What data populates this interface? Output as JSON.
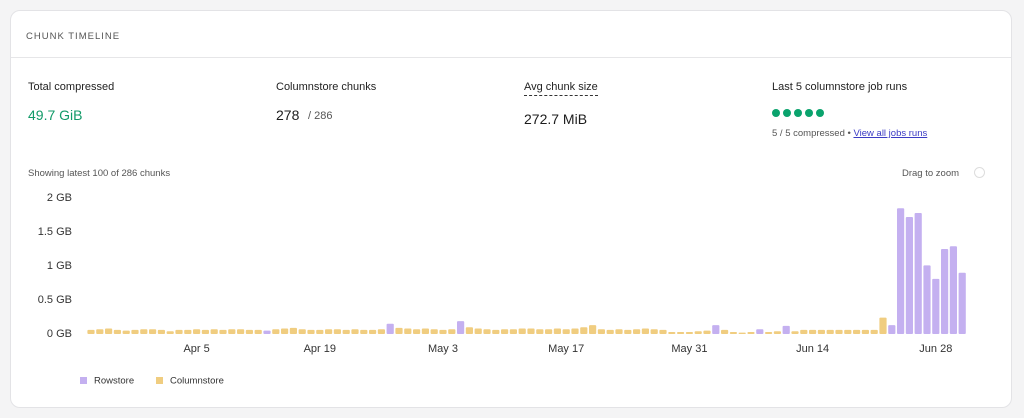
{
  "header": {
    "title": "CHUNK TIMELINE"
  },
  "stats": [
    {
      "label": "Total compressed",
      "value": "49.7 GiB"
    },
    {
      "label": "Columnstore chunks",
      "value": "278",
      "total": "/ 286"
    },
    {
      "label": "Avg chunk size",
      "value": "272.7 MiB"
    },
    {
      "label": "Last 5 columnstore job runs",
      "summary": "5 / 5 compressed •",
      "link": "View all jobs runs"
    }
  ],
  "chart_caption": "Showing latest 100 of 286 chunks",
  "zoom_hint": "Drag to zoom",
  "chart_data": {
    "type": "bar",
    "categories": [
      null,
      null,
      null,
      null,
      null,
      null,
      null,
      null,
      null,
      null,
      null,
      null,
      "Apr 5",
      null,
      null,
      null,
      null,
      null,
      null,
      null,
      null,
      null,
      null,
      null,
      null,
      null,
      "Apr 19",
      null,
      null,
      null,
      null,
      null,
      null,
      null,
      null,
      null,
      null,
      null,
      null,
      null,
      "May 3",
      null,
      null,
      null,
      null,
      null,
      null,
      null,
      null,
      null,
      null,
      null,
      null,
      null,
      "May 17",
      null,
      null,
      null,
      null,
      null,
      null,
      null,
      null,
      null,
      null,
      null,
      null,
      null,
      "May 31",
      null,
      null,
      null,
      null,
      null,
      null,
      null,
      null,
      null,
      null,
      null,
      null,
      null,
      "Jun 14",
      null,
      null,
      null,
      null,
      null,
      null,
      null,
      null,
      null,
      null,
      null,
      null,
      null,
      "Jun 28",
      null,
      null,
      null
    ],
    "series": [
      {
        "name": "Rowstore",
        "color": "#c4b0f0",
        "values": [
          null,
          null,
          null,
          null,
          null,
          null,
          null,
          null,
          null,
          null,
          null,
          null,
          null,
          null,
          null,
          null,
          null,
          null,
          null,
          null,
          0.05,
          null,
          null,
          null,
          null,
          null,
          null,
          null,
          null,
          null,
          null,
          null,
          null,
          null,
          0.15,
          null,
          null,
          null,
          null,
          null,
          null,
          null,
          0.19,
          null,
          null,
          null,
          null,
          null,
          null,
          null,
          null,
          null,
          null,
          null,
          null,
          null,
          null,
          null,
          null,
          null,
          null,
          null,
          null,
          null,
          null,
          null,
          null,
          null,
          null,
          null,
          null,
          0.13,
          null,
          null,
          null,
          null,
          0.07,
          null,
          null,
          0.12,
          null,
          null,
          null,
          null,
          null,
          null,
          null,
          null,
          null,
          null,
          null,
          0.13,
          1.85,
          1.72,
          1.78,
          1.01,
          0.81,
          1.25,
          1.29,
          0.9
        ]
      },
      {
        "name": "Columnstore",
        "color": "#f0cd80",
        "values": [
          0.06,
          0.07,
          0.08,
          0.06,
          0.05,
          0.06,
          0.07,
          0.07,
          0.06,
          0.04,
          0.06,
          0.06,
          0.07,
          0.06,
          0.07,
          0.06,
          0.07,
          0.07,
          0.06,
          0.06,
          null,
          0.07,
          0.08,
          0.09,
          0.07,
          0.06,
          0.06,
          0.07,
          0.07,
          0.06,
          0.07,
          0.06,
          0.06,
          0.07,
          null,
          0.09,
          0.08,
          0.07,
          0.08,
          0.07,
          0.06,
          0.07,
          null,
          0.1,
          0.08,
          0.07,
          0.06,
          0.07,
          0.07,
          0.08,
          0.08,
          0.07,
          0.07,
          0.08,
          0.07,
          0.08,
          0.1,
          0.13,
          0.07,
          0.06,
          0.07,
          0.06,
          0.07,
          0.08,
          0.07,
          0.06,
          0.03,
          0.03,
          0.03,
          0.04,
          0.05,
          null,
          0.06,
          0.03,
          0.02,
          0.03,
          null,
          0.03,
          0.04,
          null,
          0.04,
          0.06,
          0.06,
          0.06,
          0.06,
          0.06,
          0.06,
          0.06,
          0.06,
          0.06,
          0.24,
          null,
          null,
          null,
          null,
          null,
          null,
          null,
          null,
          null
        ]
      }
    ],
    "ylim": [
      0,
      2
    ],
    "yticks": [
      {
        "value": 0,
        "label": "0 GB"
      },
      {
        "value": 0.5,
        "label": "0.5 GB"
      },
      {
        "value": 1,
        "label": "1 GB"
      },
      {
        "value": 1.5,
        "label": "1.5 GB"
      },
      {
        "value": 2,
        "label": "2 GB"
      }
    ],
    "grid": false
  }
}
